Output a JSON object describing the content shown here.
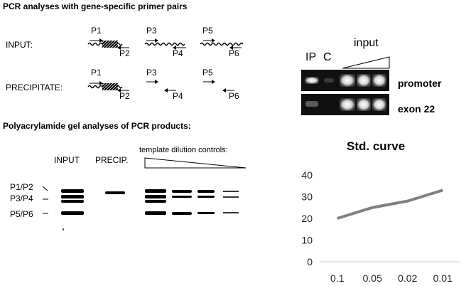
{
  "panel_a": {
    "title": "PCR analyses with gene-specific primer pairs",
    "rows": [
      {
        "label": "INPUT:",
        "primers": [
          "P1",
          "P2",
          "P3",
          "P4",
          "P5",
          "P6"
        ]
      },
      {
        "label": "PRECIPITATE:",
        "primers": [
          "P1",
          "P2",
          "P3",
          "P4",
          "P5",
          "P6"
        ]
      }
    ]
  },
  "panel_b": {
    "title": "Polyacrylamide gel analyses of PCR products:",
    "lane_labels": {
      "input": "INPUT",
      "precip": "PRECIP.",
      "controls": "template dilution controls:"
    },
    "band_labels": [
      "P1/P2",
      "P3/P4",
      "P5/P6"
    ]
  },
  "gel_image": {
    "lane_labels": {
      "ip": "IP",
      "c": "C",
      "input": "input"
    },
    "row_labels": [
      "promoter",
      "exon 22"
    ]
  },
  "chart_data": {
    "type": "line",
    "title": "Std. curve",
    "categories": [
      "0.1",
      "0.05",
      "0.02",
      "0.01"
    ],
    "values": [
      20,
      25,
      28,
      33
    ],
    "ylim": [
      0,
      40
    ],
    "yticks": [
      0,
      10,
      20,
      30,
      40
    ],
    "grid": false,
    "line_color": "#808080"
  }
}
